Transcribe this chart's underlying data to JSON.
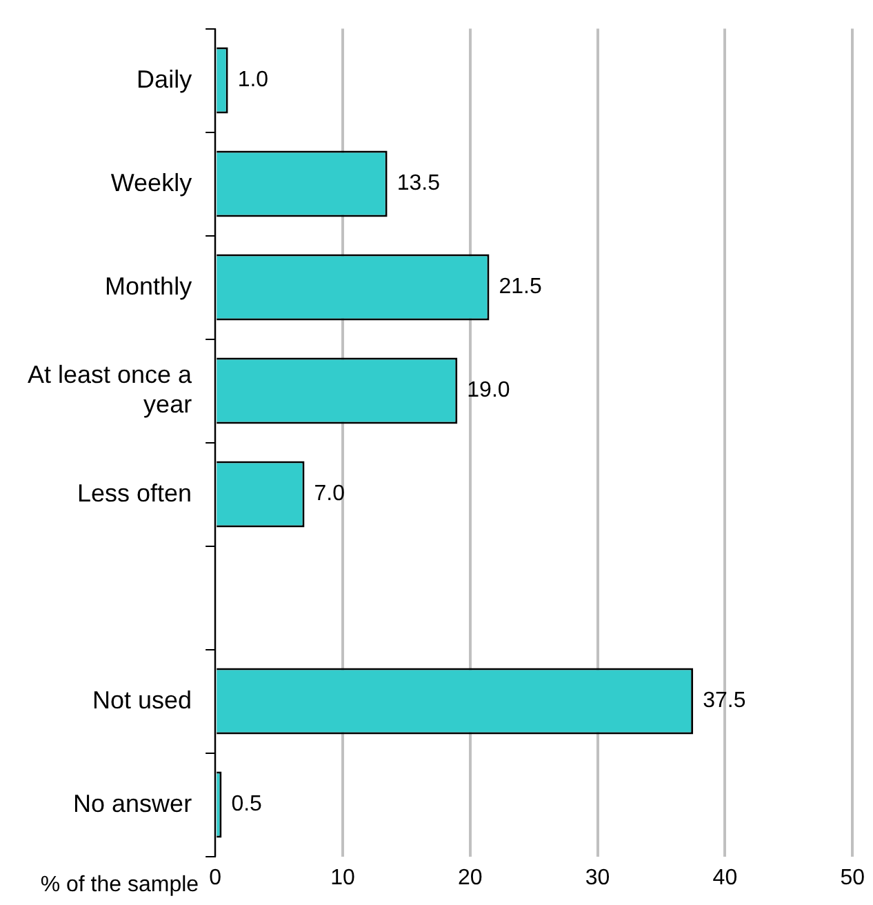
{
  "chart_data": {
    "type": "bar",
    "orientation": "horizontal",
    "xlabel": "% of the sample",
    "categories": [
      "Daily",
      "Weekly",
      "Monthly",
      "At least once a year",
      "Less often",
      null,
      "Not used",
      "No answer"
    ],
    "values": [
      1.0,
      13.5,
      21.5,
      19.0,
      7.0,
      null,
      37.5,
      0.5
    ],
    "color": "#33cccc",
    "xlim": [
      0,
      50
    ],
    "xticks": [
      0,
      10,
      20,
      30,
      40,
      50
    ],
    "value_labels": [
      "1.0",
      "13.5",
      "21.5",
      "19.0",
      "7.0",
      null,
      "37.5",
      "0.5"
    ],
    "grid": "x",
    "legend": false
  }
}
